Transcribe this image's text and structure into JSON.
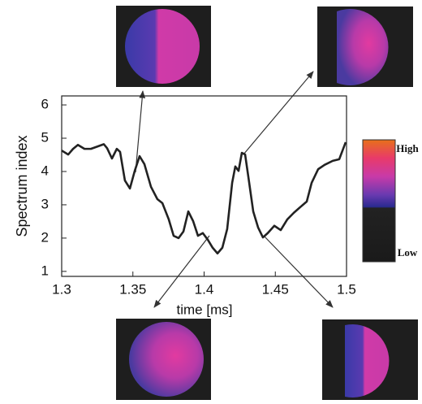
{
  "chart_data": {
    "type": "line",
    "xlabel": "time [ms]",
    "ylabel": "Spectrum  index",
    "x": [
      1.3,
      1.3046,
      1.308,
      1.3114,
      1.316,
      1.3205,
      1.3251,
      1.3296,
      1.3319,
      1.3353,
      1.3387,
      1.341,
      1.3444,
      1.3479,
      1.3513,
      1.3547,
      1.3581,
      1.3627,
      1.3672,
      1.3707,
      1.3752,
      1.3786,
      1.3821,
      1.3855,
      1.3889,
      1.3923,
      1.3957,
      1.3991,
      1.4026,
      1.406,
      1.4094,
      1.4128,
      1.4162,
      1.4197,
      1.4219,
      1.4242,
      1.4265,
      1.4288,
      1.4311,
      1.4345,
      1.4379,
      1.4413,
      1.4447,
      1.4493,
      1.4538,
      1.4584,
      1.463,
      1.4675,
      1.4721,
      1.4755,
      1.4801,
      1.4846,
      1.4903,
      1.4949,
      1.4994
    ],
    "values": [
      4.63,
      4.51,
      4.68,
      4.8,
      4.68,
      4.68,
      4.75,
      4.82,
      4.7,
      4.39,
      4.68,
      4.59,
      3.73,
      3.49,
      4.02,
      4.46,
      4.22,
      3.54,
      3.17,
      3.05,
      2.56,
      2.07,
      2.0,
      2.2,
      2.8,
      2.51,
      2.07,
      2.15,
      1.95,
      1.71,
      1.54,
      1.71,
      2.27,
      3.66,
      4.15,
      4.02,
      4.56,
      4.51,
      3.83,
      2.8,
      2.32,
      2.02,
      2.15,
      2.37,
      2.24,
      2.56,
      2.76,
      2.93,
      3.1,
      3.66,
      4.07,
      4.2,
      4.32,
      4.37,
      4.88
    ],
    "color": "#222222",
    "xlim": [
      1.3,
      1.5
    ],
    "xticks": [
      1.3,
      1.35,
      1.4,
      1.45,
      1.5
    ],
    "ylim": [
      0.85,
      6.27
    ],
    "yticks": [
      1,
      2,
      3,
      4,
      5,
      6
    ],
    "grid": false,
    "colorbar": {
      "high": "High",
      "low": "Low"
    }
  }
}
